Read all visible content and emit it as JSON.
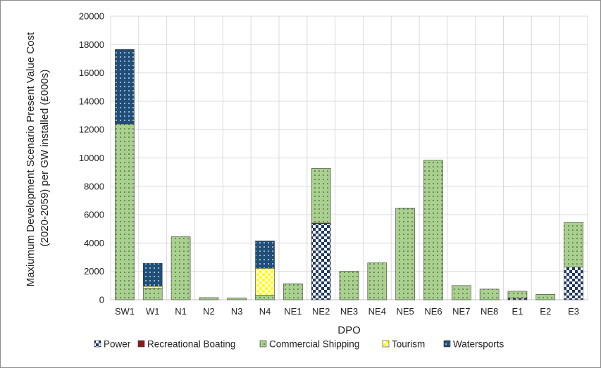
{
  "chart_data": {
    "type": "bar",
    "stacked": true,
    "xlabel": "DPO",
    "ylabel_lines": [
      "Maxiumum Development Scenario Present Value Cost",
      "(2020-2059) per GW installed (£000s)"
    ],
    "ylim": [
      0,
      20000
    ],
    "yticks": [
      0,
      2000,
      4000,
      6000,
      8000,
      10000,
      12000,
      14000,
      16000,
      18000,
      20000
    ],
    "ytick_labels": [
      "0",
      "2000",
      "4000",
      "6000",
      "8000",
      "10000",
      "12000",
      "14000",
      "16000",
      "18000",
      "20000"
    ],
    "grid": true,
    "legend_position": "bottom",
    "categories": [
      "SW1",
      "W1",
      "N1",
      "N2",
      "N3",
      "N4",
      "NE1",
      "NE2",
      "NE3",
      "NE4",
      "NE5",
      "NE6",
      "NE7",
      "NE8",
      "E1",
      "E2",
      "E3"
    ],
    "series": [
      {
        "name": "Power",
        "color": "#1f3864",
        "pattern": "checker",
        "values": [
          0,
          0,
          0,
          0,
          0,
          0,
          0,
          5350,
          0,
          0,
          0,
          0,
          0,
          0,
          100,
          0,
          2300
        ]
      },
      {
        "name": "Recreational Boating",
        "color": "#8b1a1a",
        "pattern": "solid",
        "values": [
          0,
          0,
          0,
          0,
          0,
          0,
          0,
          60,
          0,
          0,
          0,
          0,
          0,
          0,
          0,
          0,
          0
        ]
      },
      {
        "name": "Commercial Shipping",
        "color": "#a9d18e",
        "pattern": "dots",
        "values": [
          12400,
          800,
          4450,
          150,
          130,
          320,
          1130,
          3850,
          2000,
          2600,
          6450,
          9850,
          1000,
          750,
          500,
          380,
          3150
        ]
      },
      {
        "name": "Tourism",
        "color": "#ffff00",
        "pattern": "checker",
        "values": [
          0,
          150,
          0,
          0,
          0,
          1900,
          0,
          0,
          0,
          0,
          0,
          0,
          0,
          0,
          0,
          0,
          0
        ]
      },
      {
        "name": "Watersports",
        "color": "#1f4e79",
        "pattern": "dots",
        "values": [
          5250,
          1620,
          0,
          0,
          0,
          1930,
          0,
          0,
          0,
          0,
          0,
          0,
          0,
          0,
          0,
          0,
          0
        ]
      }
    ]
  }
}
